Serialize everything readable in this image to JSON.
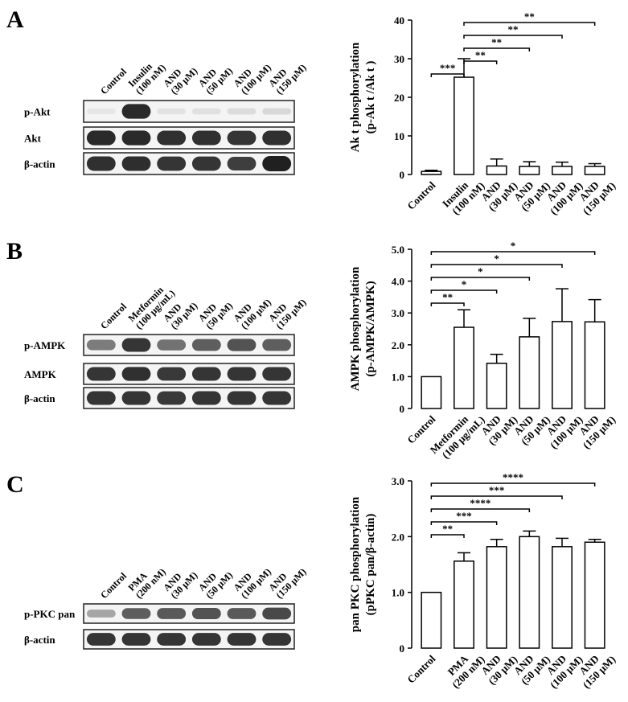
{
  "panels": [
    {
      "letter": "A",
      "blot": {
        "lanes": [
          "Control",
          "Insulin\n(100 nM)",
          "AND\n(30 μM)",
          "AND\n(50 μM)",
          "AND\n(100 μM)",
          "AND\n(150 μM)"
        ],
        "rows": [
          {
            "label": "p-Akt",
            "intensity": [
              0.03,
              0.95,
              0.05,
              0.06,
              0.08,
              0.1
            ]
          },
          {
            "label": "Akt",
            "intensity": [
              0.95,
              0.95,
              0.92,
              0.92,
              0.9,
              0.92
            ]
          },
          {
            "label": "β-actin",
            "intensity": [
              0.92,
              0.93,
              0.9,
              0.9,
              0.85,
              1.0
            ]
          }
        ]
      },
      "chart": {
        "type": "bar",
        "ylabel_lines": [
          "Ak t phosphorylation",
          "(p-Ak t /Ak t )"
        ],
        "categories": [
          "Control",
          "Insulin\n(100 nM)",
          "AND\n(30 μM)",
          "AND\n(50 μM)",
          "AND\n(100 μM)",
          "AND\n(150 μM)"
        ],
        "values": [
          0.8,
          25.2,
          2.2,
          2.1,
          2.1,
          2.1
        ],
        "errors": [
          0.3,
          4.8,
          1.8,
          1.2,
          1.1,
          0.7
        ],
        "ylim": [
          0,
          40
        ],
        "yticks": [
          0,
          10,
          20,
          30,
          40
        ],
        "ytick_labels": [
          "0",
          "10",
          "20",
          "30",
          "40"
        ],
        "sig": [
          {
            "from": 0,
            "to": 1,
            "label": "***"
          },
          {
            "from": 1,
            "to": 2,
            "label": "**"
          },
          {
            "from": 1,
            "to": 3,
            "label": "**"
          },
          {
            "from": 1,
            "to": 4,
            "label": "**"
          },
          {
            "from": 1,
            "to": 5,
            "label": "**"
          }
        ]
      }
    },
    {
      "letter": "B",
      "blot": {
        "lanes": [
          "Control",
          "Metformin\n(100 μg/mL)",
          "AND\n(30 μM)",
          "AND\n(50 μM)",
          "AND\n(100 μM)",
          "AND\n(150 μM)"
        ],
        "rows": [
          {
            "label": "p-AMPK",
            "intensity": [
              0.55,
              0.9,
              0.6,
              0.7,
              0.75,
              0.7
            ]
          },
          {
            "label": "AMPK",
            "intensity": [
              0.9,
              0.92,
              0.88,
              0.9,
              0.9,
              0.9
            ]
          },
          {
            "label": "β-actin",
            "intensity": [
              0.9,
              0.9,
              0.88,
              0.9,
              0.9,
              0.9
            ]
          }
        ]
      },
      "chart": {
        "type": "bar",
        "ylabel_lines": [
          "AMPK phosphorylation",
          "(p-AMPK/AMPK)"
        ],
        "categories": [
          "Control",
          "Metformin\n(100 μg/mL)",
          "AND\n(30 μM)",
          "AND\n(50 μM)",
          "AND\n(100 μM)",
          "AND\n(150 μM)"
        ],
        "values": [
          1.0,
          2.55,
          1.42,
          2.25,
          2.73,
          2.72
        ],
        "errors": [
          0.0,
          0.55,
          0.28,
          0.58,
          1.03,
          0.7
        ],
        "ylim": [
          0,
          5
        ],
        "yticks": [
          0,
          1,
          2,
          3,
          4,
          5
        ],
        "ytick_labels": [
          "0",
          "1.0",
          "2.0",
          "3.0",
          "4.0",
          "5.0"
        ],
        "sig": [
          {
            "from": 0,
            "to": 1,
            "label": "**"
          },
          {
            "from": 0,
            "to": 2,
            "label": "*"
          },
          {
            "from": 0,
            "to": 3,
            "label": "*"
          },
          {
            "from": 0,
            "to": 4,
            "label": "*"
          },
          {
            "from": 0,
            "to": 5,
            "label": "*"
          }
        ]
      }
    },
    {
      "letter": "C",
      "blot": {
        "lanes": [
          "Control",
          "PMA\n(200 nM)",
          "AND\n(30 μM)",
          "AND\n(50 μM)",
          "AND\n(100 μM)",
          "AND\n(150 μM)"
        ],
        "rows": [
          {
            "label": "p-PKC pan",
            "intensity": [
              0.35,
              0.7,
              0.72,
              0.75,
              0.72,
              0.8
            ]
          },
          {
            "label": "β-actin",
            "intensity": [
              0.9,
              0.9,
              0.9,
              0.9,
              0.9,
              0.9
            ]
          }
        ]
      },
      "chart": {
        "type": "bar",
        "ylabel_lines": [
          "pan PKC phosphorylation",
          "(pPKC pan/β-actin)"
        ],
        "categories": [
          "Control",
          "PMA\n(200 nM)",
          "AND\n(30 μM)",
          "AND\n(50 μM)",
          "AND\n(100 μM)",
          "AND\n(150 μM)"
        ],
        "values": [
          1.0,
          1.56,
          1.82,
          2.0,
          1.82,
          1.9
        ],
        "errors": [
          0.0,
          0.15,
          0.13,
          0.1,
          0.15,
          0.05
        ],
        "ylim": [
          0,
          3
        ],
        "yticks": [
          0,
          1,
          2,
          3
        ],
        "ytick_labels": [
          "0",
          "1.0",
          "2.0",
          "3.0"
        ],
        "sig": [
          {
            "from": 0,
            "to": 1,
            "label": "**"
          },
          {
            "from": 0,
            "to": 2,
            "label": "***"
          },
          {
            "from": 0,
            "to": 3,
            "label": "****"
          },
          {
            "from": 0,
            "to": 4,
            "label": "***"
          },
          {
            "from": 0,
            "to": 5,
            "label": "****"
          }
        ]
      }
    }
  ]
}
